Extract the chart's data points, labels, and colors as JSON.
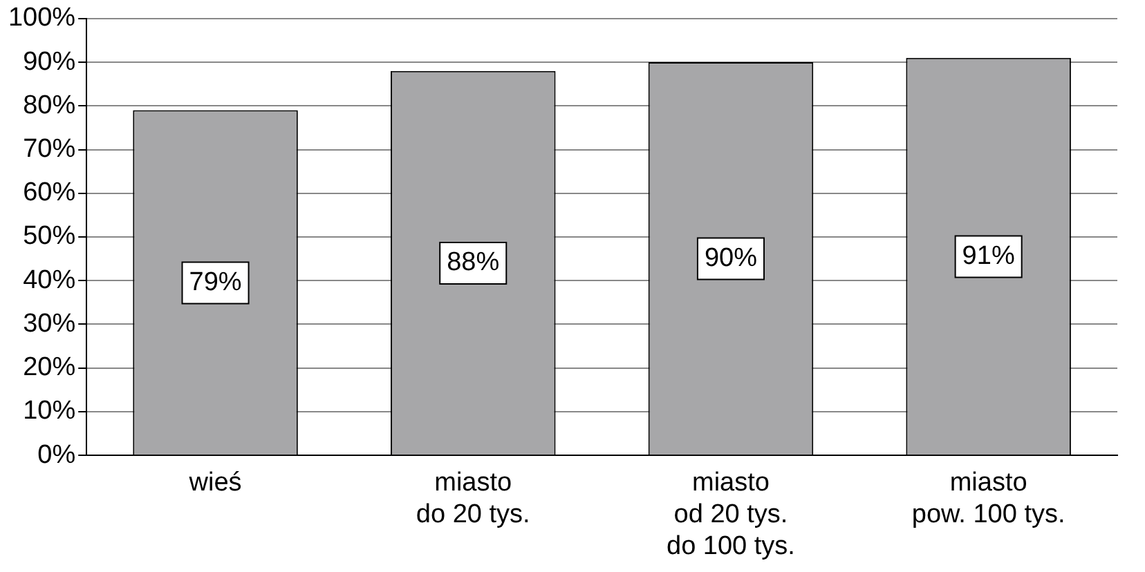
{
  "chart_data": {
    "type": "bar",
    "categories": [
      "wieś",
      "miasto\ndo 20 tys.",
      "miasto\nod 20 tys.\ndo 100 tys.",
      "miasto\npow. 100 tys."
    ],
    "values": [
      79,
      88,
      90,
      91
    ],
    "value_labels": [
      "79%",
      "88%",
      "90%",
      "91%"
    ],
    "color": "#a7a7a9",
    "ylim": [
      0,
      100
    ],
    "yticks": [
      {
        "value": 0,
        "label": "0%"
      },
      {
        "value": 10,
        "label": "10%"
      },
      {
        "value": 20,
        "label": "20%"
      },
      {
        "value": 30,
        "label": "30%"
      },
      {
        "value": 40,
        "label": "40%"
      },
      {
        "value": 50,
        "label": "50%"
      },
      {
        "value": 60,
        "label": "60%"
      },
      {
        "value": 70,
        "label": "70%"
      },
      {
        "value": 80,
        "label": "80%"
      },
      {
        "value": 90,
        "label": "90%"
      },
      {
        "value": 100,
        "label": "100%"
      }
    ],
    "grid": "y",
    "legend": false
  }
}
